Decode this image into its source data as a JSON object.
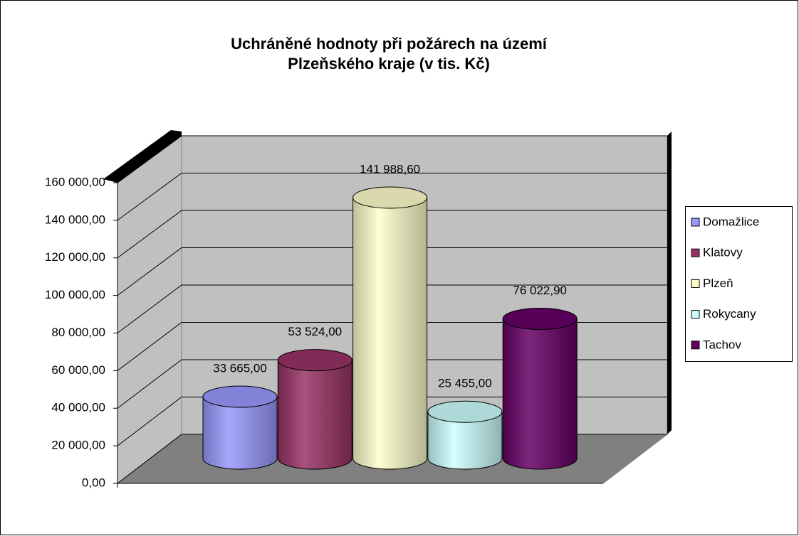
{
  "chart_data": {
    "type": "bar",
    "style": "3d-cylinder",
    "title": "Uchráněné hodnoty při požárech na území Plzeňského kraje (v tis. Kč)",
    "categories": [
      "Domažlice",
      "Klatovy",
      "Plzeň",
      "Rokycany",
      "Tachov"
    ],
    "values": [
      33665,
      53524,
      141988.6,
      25455,
      76022.9
    ],
    "value_labels": [
      "33 665,00",
      "53 524,00",
      "141 988,60",
      "25 455,00",
      "76 022,90"
    ],
    "colors": [
      "#9999ff",
      "#993366",
      "#ffffcc",
      "#ccffff",
      "#660066"
    ],
    "ylim": [
      0,
      160000
    ],
    "yticks": [
      {
        "value": 0,
        "label": "0,00"
      },
      {
        "value": 20000,
        "label": "20 000,00"
      },
      {
        "value": 40000,
        "label": "40 000,00"
      },
      {
        "value": 60000,
        "label": "60 000,00"
      },
      {
        "value": 80000,
        "label": "80 000,00"
      },
      {
        "value": 100000,
        "label": "100 000,00"
      },
      {
        "value": 120000,
        "label": "120 000,00"
      },
      {
        "value": 140000,
        "label": "140 000,00"
      },
      {
        "value": 160000,
        "label": "160 000,00"
      }
    ],
    "grid": true,
    "legend": "right"
  }
}
